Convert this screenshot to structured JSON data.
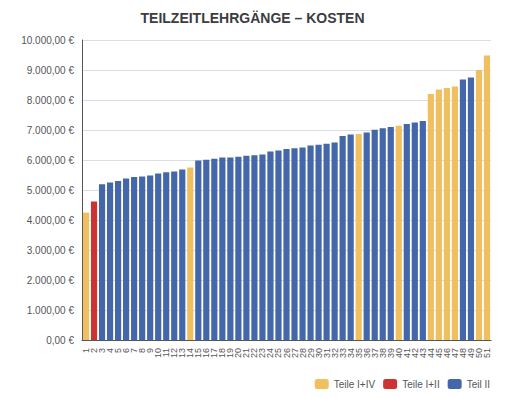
{
  "chart_data": {
    "type": "bar",
    "title": "TEILZEITLEHRGÄNGE – KOSTEN",
    "categories": [
      "1",
      "2",
      "3",
      "4",
      "5",
      "6",
      "7",
      "8",
      "9",
      "10",
      "11",
      "12",
      "13",
      "14",
      "15",
      "16",
      "17",
      "18",
      "19",
      "20",
      "21",
      "22",
      "23",
      "24",
      "25",
      "26",
      "27",
      "28",
      "29",
      "30",
      "31",
      "32",
      "33",
      "34",
      "35",
      "36",
      "37",
      "38",
      "39",
      "40",
      "41",
      "42",
      "43",
      "44",
      "45",
      "46",
      "47",
      "48",
      "49",
      "50",
      "51"
    ],
    "series": [
      {
        "name": "Teile I+IV",
        "color": "#F0C060",
        "values": [
          4245,
          null,
          null,
          null,
          null,
          null,
          null,
          null,
          null,
          null,
          null,
          null,
          null,
          5750,
          null,
          null,
          null,
          null,
          null,
          null,
          null,
          null,
          null,
          null,
          null,
          null,
          null,
          null,
          null,
          null,
          null,
          null,
          null,
          null,
          6870,
          null,
          null,
          null,
          null,
          7140,
          null,
          null,
          null,
          8200,
          8350,
          8400,
          8450,
          null,
          null,
          9000,
          9480
        ]
      },
      {
        "name": "Teile I+II",
        "color": "#CC3333",
        "values": [
          null,
          4620,
          null,
          null,
          null,
          null,
          null,
          null,
          null,
          null,
          null,
          null,
          null,
          null,
          null,
          null,
          null,
          null,
          null,
          null,
          null,
          null,
          null,
          null,
          null,
          null,
          null,
          null,
          null,
          null,
          null,
          null,
          null,
          null,
          null,
          null,
          null,
          null,
          null,
          null,
          null,
          null,
          null,
          null,
          null,
          null,
          null,
          null,
          null,
          null,
          null
        ]
      },
      {
        "name": "Teil II",
        "color": "#4466AA",
        "values": [
          null,
          null,
          5190,
          5250,
          5300,
          5380,
          5430,
          5450,
          5480,
          5550,
          5590,
          5620,
          5680,
          null,
          5980,
          6010,
          6040,
          6080,
          6080,
          6110,
          6140,
          6160,
          6180,
          6280,
          6320,
          6370,
          6390,
          6420,
          6480,
          6510,
          6540,
          6580,
          6800,
          6850,
          null,
          6920,
          7010,
          7060,
          7100,
          null,
          7200,
          7250,
          7300,
          null,
          null,
          null,
          null,
          8680,
          8750,
          null,
          null
        ]
      }
    ],
    "ylim": [
      0,
      10000
    ],
    "yticks": [
      {
        "value": 0,
        "label": "0,00 €"
      },
      {
        "value": 1000,
        "label": "1.000,00 €"
      },
      {
        "value": 2000,
        "label": "2.000,00 €"
      },
      {
        "value": 3000,
        "label": "3.000,00 €"
      },
      {
        "value": 4000,
        "label": "4.000,00 €"
      },
      {
        "value": 5000,
        "label": "5.000,00 €"
      },
      {
        "value": 6000,
        "label": "6.000,00 €"
      },
      {
        "value": 7000,
        "label": "7.000,00 €"
      },
      {
        "value": 8000,
        "label": "8.000,00 €"
      },
      {
        "value": 9000,
        "label": "9.000,00 €"
      },
      {
        "value": 10000,
        "label": "10.000,00 €"
      }
    ],
    "grid": true,
    "legend": "lower-right"
  }
}
